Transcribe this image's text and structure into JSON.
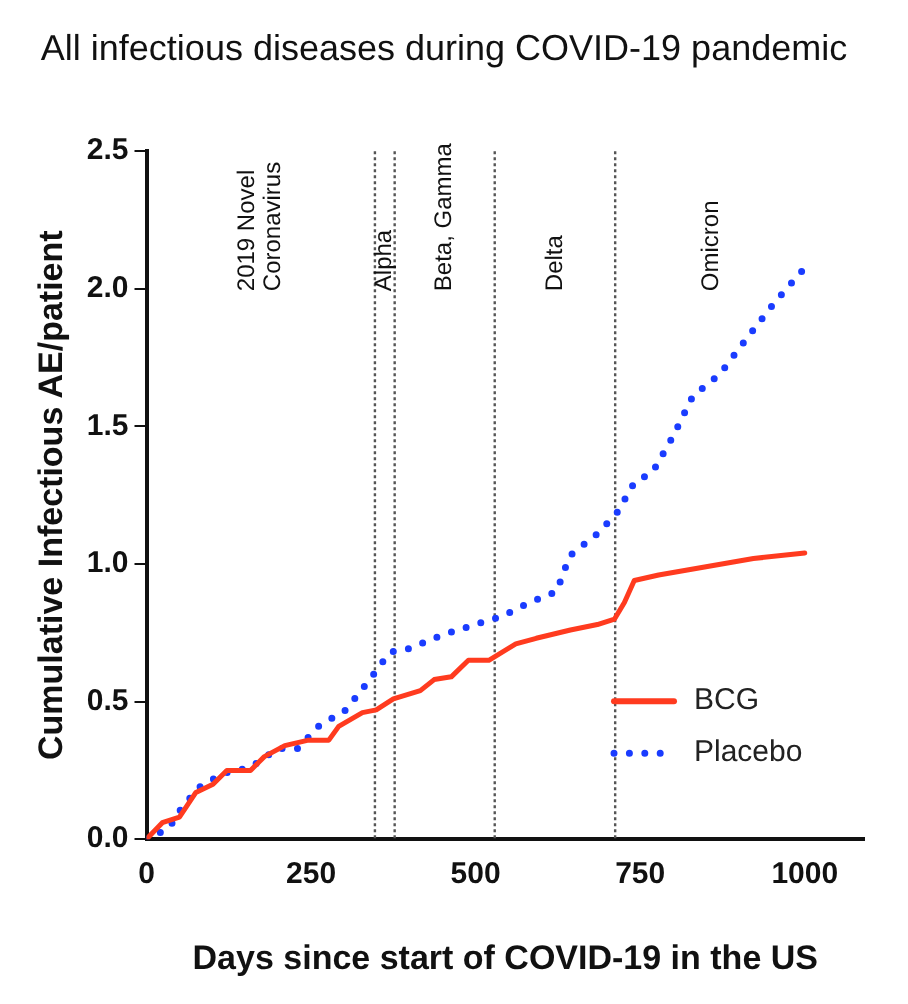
{
  "chart_data": {
    "type": "line",
    "title": "All infectious diseases during COVID-19 pandemic",
    "xlabel": "Days since start of COVID-19 in the US",
    "ylabel": "Cumulative Infectious AE/patient",
    "xlim": [
      0,
      1090
    ],
    "xticks": [
      0,
      250,
      500,
      750,
      1000
    ],
    "ylim": [
      0,
      2.5
    ],
    "yticks": [
      {
        "value": 0,
        "label": "0.0"
      },
      {
        "value": 0.5,
        "label": "0.5"
      },
      {
        "value": 1,
        "label": "1.0"
      },
      {
        "value": 1.5,
        "label": "1.5"
      },
      {
        "value": 2,
        "label": "2.0"
      },
      {
        "value": 2.5,
        "label": "2.5"
      }
    ],
    "grid": false,
    "legend": "bottom right",
    "marker": "none",
    "series": [
      {
        "name": "BCG",
        "color": "#ff3b1f",
        "line_style": "solid",
        "x": [
          0,
          24,
          50,
          75,
          101,
          122,
          158,
          179,
          210,
          246,
          277,
          292,
          328,
          349,
          375,
          416,
          437,
          463,
          489,
          520,
          561,
          592,
          644,
          685,
          711,
          726,
          741,
          778,
          850,
          922,
          1000
        ],
        "values": [
          0,
          0.06,
          0.08,
          0.17,
          0.2,
          0.25,
          0.25,
          0.3,
          0.34,
          0.36,
          0.36,
          0.41,
          0.46,
          0.47,
          0.51,
          0.54,
          0.58,
          0.59,
          0.65,
          0.65,
          0.71,
          0.73,
          0.76,
          0.78,
          0.8,
          0.86,
          0.94,
          0.96,
          0.99,
          1.02,
          1.04
        ]
      },
      {
        "name": "Placebo",
        "color": "#1a3cff",
        "line_style": "dotted",
        "x": [
          0,
          34,
          55,
          81,
          117,
          158,
          199,
          230,
          261,
          303,
          339,
          370,
          396,
          447,
          499,
          540,
          582,
          623,
          643,
          685,
          716,
          742,
          768,
          799,
          830,
          871,
          912,
          954,
          1005
        ],
        "values": [
          0,
          0.04,
          0.12,
          0.19,
          0.24,
          0.26,
          0.33,
          0.33,
          0.41,
          0.47,
          0.58,
          0.68,
          0.69,
          0.74,
          0.78,
          0.81,
          0.86,
          0.9,
          1.03,
          1.11,
          1.19,
          1.3,
          1.33,
          1.46,
          1.61,
          1.69,
          1.82,
          1.95,
          2.09
        ]
      }
    ],
    "ref_lines": [
      {
        "axis": "x",
        "value": 347,
        "color": "#555555",
        "line_style": "dotted"
      },
      {
        "axis": "x",
        "value": 377,
        "color": "#555555",
        "line_style": "dotted"
      },
      {
        "axis": "x",
        "value": 529,
        "color": "#555555",
        "line_style": "dotted"
      },
      {
        "axis": "x",
        "value": 712,
        "color": "#555555",
        "line_style": "dotted"
      }
    ],
    "annotations": [
      "2019 Novel\nCoronavirus",
      "Alpha",
      "Beta, Gamma",
      "Delta",
      "Omicron"
    ]
  }
}
